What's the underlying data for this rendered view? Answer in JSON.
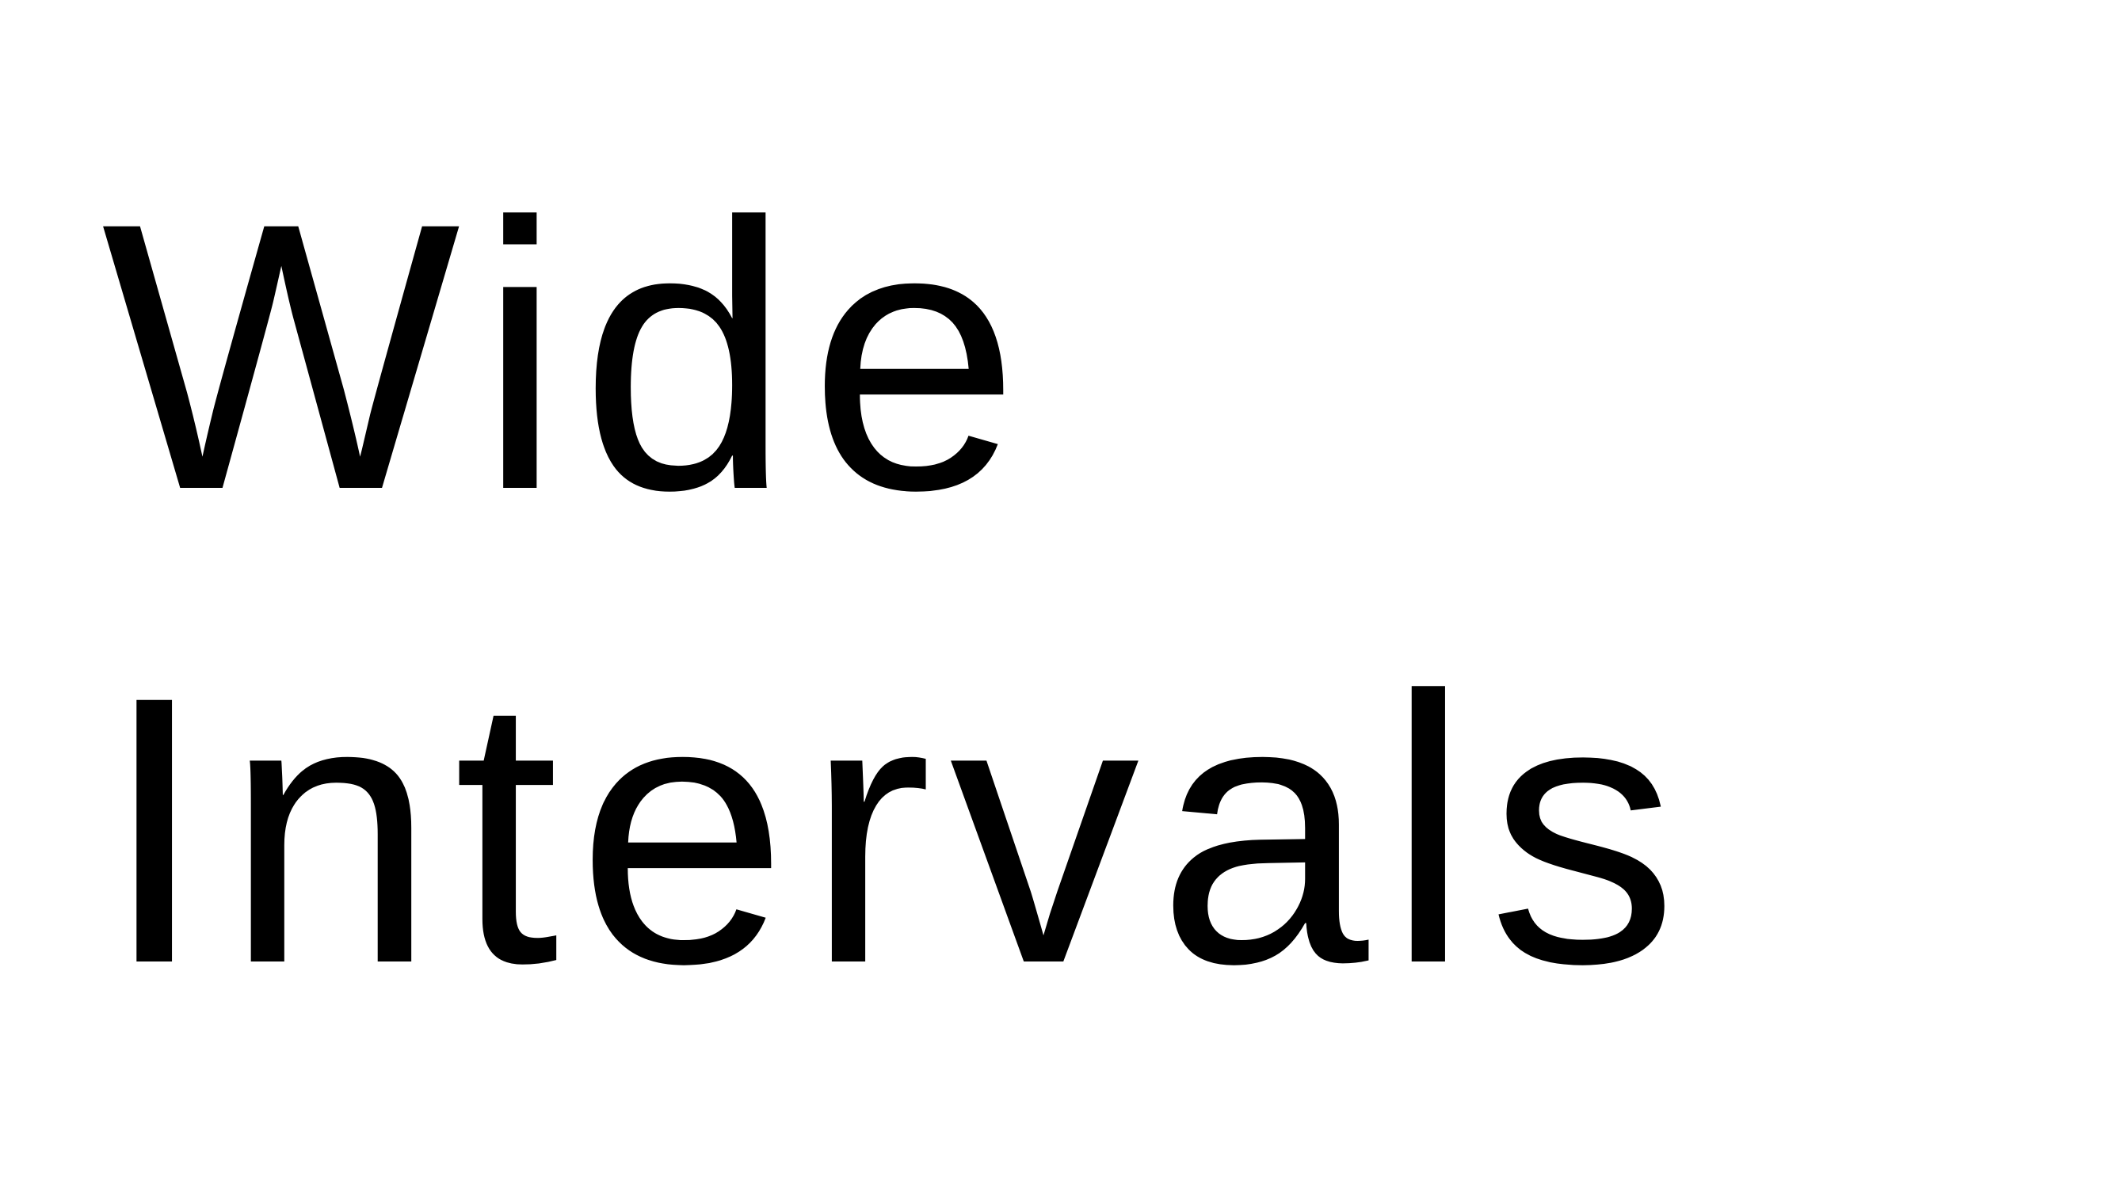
{
  "slide": {
    "title_line_1": "Wide",
    "title_line_2": "Intervals"
  }
}
